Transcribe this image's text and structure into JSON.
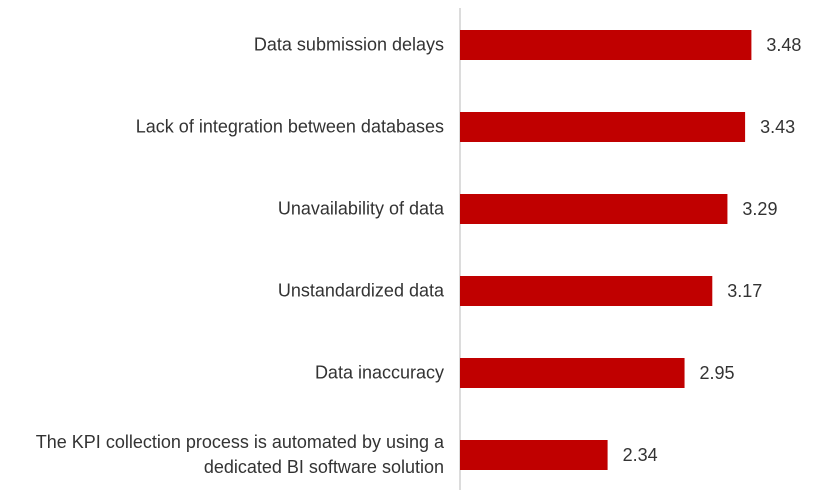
{
  "chart_data": {
    "type": "barh",
    "categories": [
      "Data submission delays",
      "Lack of integration between  databases",
      "Unavailability of data",
      "Unstandardized data",
      "Data inaccuracy",
      "The KPI collection process is automated by using a dedicated BI software solution"
    ],
    "values": [
      3.48,
      3.43,
      3.29,
      3.17,
      2.95,
      2.34
    ],
    "color": "#c00000",
    "xlim": [
      1.17,
      4.0
    ],
    "grid": false
  }
}
